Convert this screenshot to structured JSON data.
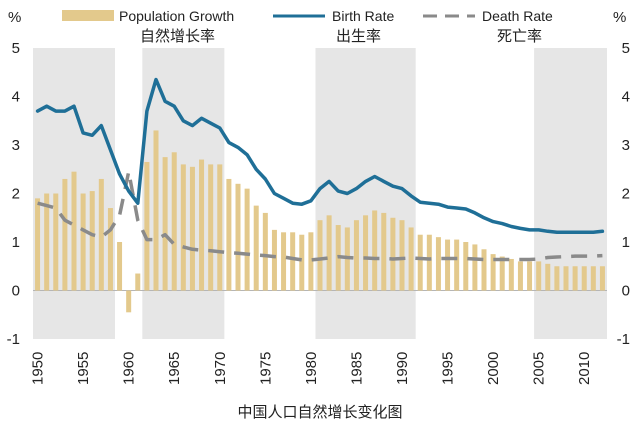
{
  "chart_data": {
    "type": "bar+line",
    "caption": "中国人口自然增长变化图",
    "y_unit_left": "%",
    "y_unit_right": "%",
    "ylim": [
      -1,
      5
    ],
    "y_ticks": [
      "-1",
      "0",
      "1",
      "2",
      "3",
      "4",
      "5"
    ],
    "xlim": [
      1949.5,
      2012.5
    ],
    "x_ticks": [
      "1950",
      "1955",
      "1960",
      "1965",
      "1970",
      "1975",
      "1980",
      "1985",
      "1990",
      "1995",
      "2000",
      "2005",
      "2010"
    ],
    "shaded_periods": [
      [
        1949.5,
        1958.5
      ],
      [
        1961.5,
        1970.5
      ],
      [
        1980.5,
        1991.5
      ],
      [
        2004.5,
        2012.5
      ]
    ],
    "legend": [
      {
        "key": "pop",
        "label": "Population Growth",
        "sublabel": "自然增长率",
        "color": "#e3c98c"
      },
      {
        "key": "birth",
        "label": "Birth Rate",
        "sublabel": "出生率",
        "color": "#1f6f97"
      },
      {
        "key": "death",
        "label": "Death Rate",
        "sublabel": "死亡率",
        "color": "#8a8a8a"
      }
    ],
    "x": [
      1950,
      1951,
      1952,
      1953,
      1954,
      1955,
      1956,
      1957,
      1958,
      1959,
      1960,
      1961,
      1962,
      1963,
      1964,
      1965,
      1966,
      1967,
      1968,
      1969,
      1970,
      1971,
      1972,
      1973,
      1974,
      1975,
      1976,
      1977,
      1978,
      1979,
      1980,
      1981,
      1982,
      1983,
      1984,
      1985,
      1986,
      1987,
      1988,
      1989,
      1990,
      1991,
      1992,
      1993,
      1994,
      1995,
      1996,
      1997,
      1998,
      1999,
      2000,
      2001,
      2002,
      2003,
      2004,
      2005,
      2006,
      2007,
      2008,
      2009,
      2010,
      2011,
      2012
    ],
    "series": [
      {
        "name": "Population Growth",
        "type": "bar",
        "values": [
          1.9,
          2.0,
          2.0,
          2.3,
          2.45,
          2.0,
          2.05,
          2.3,
          1.7,
          1.0,
          -0.45,
          0.35,
          2.65,
          3.3,
          2.75,
          2.85,
          2.6,
          2.55,
          2.7,
          2.6,
          2.6,
          2.3,
          2.2,
          2.1,
          1.75,
          1.6,
          1.25,
          1.2,
          1.2,
          1.15,
          1.2,
          1.45,
          1.55,
          1.35,
          1.3,
          1.45,
          1.55,
          1.65,
          1.6,
          1.5,
          1.45,
          1.3,
          1.15,
          1.15,
          1.1,
          1.05,
          1.05,
          1.0,
          0.95,
          0.85,
          0.75,
          0.7,
          0.65,
          0.6,
          0.6,
          0.6,
          0.55,
          0.5,
          0.5,
          0.5,
          0.5,
          0.5,
          0.5
        ]
      },
      {
        "name": "Birth Rate",
        "type": "line",
        "values": [
          3.7,
          3.8,
          3.7,
          3.7,
          3.8,
          3.25,
          3.2,
          3.4,
          2.9,
          2.4,
          2.05,
          1.8,
          3.7,
          4.35,
          3.9,
          3.8,
          3.5,
          3.4,
          3.55,
          3.45,
          3.35,
          3.05,
          2.95,
          2.8,
          2.5,
          2.3,
          2.0,
          1.9,
          1.8,
          1.78,
          1.85,
          2.1,
          2.25,
          2.05,
          2.0,
          2.1,
          2.25,
          2.35,
          2.25,
          2.15,
          2.1,
          1.95,
          1.82,
          1.8,
          1.78,
          1.72,
          1.7,
          1.68,
          1.6,
          1.5,
          1.42,
          1.38,
          1.32,
          1.28,
          1.25,
          1.25,
          1.22,
          1.2,
          1.2,
          1.2,
          1.2,
          1.2,
          1.22
        ]
      },
      {
        "name": "Death Rate",
        "type": "line",
        "values": [
          1.8,
          1.75,
          1.7,
          1.45,
          1.35,
          1.25,
          1.15,
          1.1,
          1.25,
          1.55,
          2.45,
          1.45,
          1.05,
          1.05,
          1.15,
          0.95,
          0.9,
          0.85,
          0.83,
          0.82,
          0.8,
          0.78,
          0.77,
          0.75,
          0.73,
          0.72,
          0.7,
          0.69,
          0.66,
          0.63,
          0.63,
          0.65,
          0.67,
          0.7,
          0.68,
          0.67,
          0.67,
          0.66,
          0.66,
          0.65,
          0.66,
          0.67,
          0.66,
          0.65,
          0.66,
          0.66,
          0.66,
          0.66,
          0.65,
          0.64,
          0.64,
          0.64,
          0.64,
          0.64,
          0.64,
          0.65,
          0.68,
          0.69,
          0.7,
          0.71,
          0.71,
          0.71,
          0.72
        ]
      }
    ]
  }
}
